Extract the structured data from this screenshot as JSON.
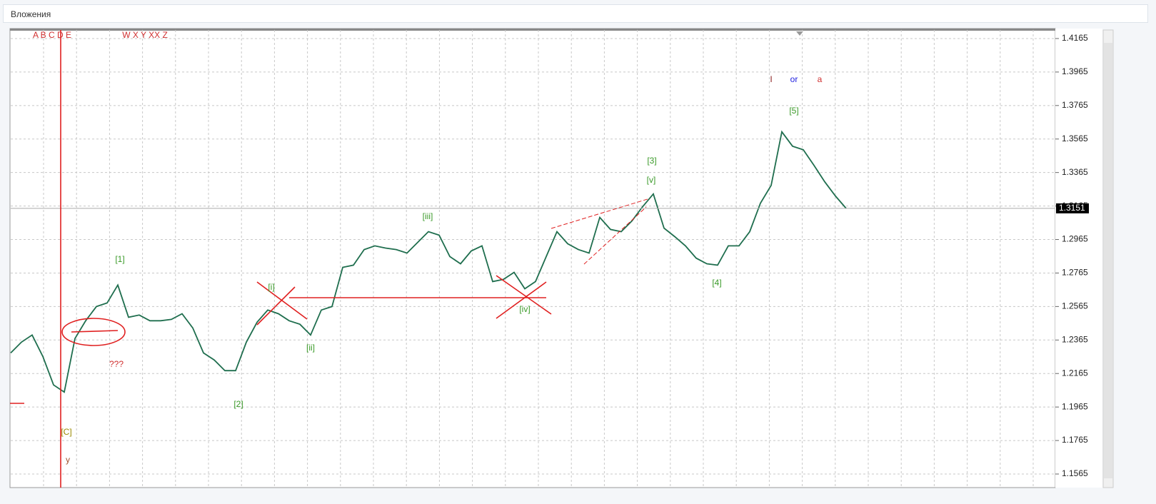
{
  "window_title": "Вложения",
  "chart_data": {
    "type": "line",
    "color": "#1f6e4e",
    "values": [
      1.2288,
      1.2352,
      1.2395,
      1.2267,
      1.2097,
      1.2054,
      1.2374,
      1.248,
      1.2565,
      1.2586,
      1.2693,
      1.2501,
      1.2514,
      1.248,
      1.248,
      1.2488,
      1.2522,
      1.2437,
      1.2288,
      1.2246,
      1.2182,
      1.2182,
      1.2352,
      1.2471,
      1.2544,
      1.2522,
      1.248,
      1.2459,
      1.2395,
      1.2544,
      1.2565,
      1.2799,
      1.2812,
      1.2905,
      1.2927,
      1.2914,
      1.2905,
      1.2884,
      1.2948,
      1.3012,
      1.2991,
      1.2863,
      1.282,
      1.2897,
      1.2927,
      1.2714,
      1.2727,
      1.2769,
      1.2671,
      1.2714,
      1.2863,
      1.3012,
      1.294,
      1.2905,
      1.2884,
      1.3097,
      1.3025,
      1.3012,
      1.3076,
      1.3161,
      1.3237,
      1.3033,
      1.2982,
      1.2927,
      1.2854,
      1.282,
      1.2812,
      1.2927,
      1.2927,
      1.3012,
      1.3182,
      1.3288,
      1.3608,
      1.3522,
      1.3501,
      1.3408,
      1.331,
      1.3225,
      1.3151
    ],
    "ylim": [
      1.1484,
      1.4216
    ],
    "yticks": [
      1.4165,
      1.3965,
      1.3765,
      1.3565,
      1.3365,
      1.3165,
      1.2965,
      1.2765,
      1.2565,
      1.2365,
      1.2165,
      1.1965,
      1.1765,
      1.1565
    ],
    "grid": true,
    "current_price": 1.3151,
    "annotations": [
      {
        "text": "A B C D E",
        "color": "#d03030"
      },
      {
        "text": "W X Y XX Z",
        "color": "#d03030"
      },
      {
        "text": "[1]",
        "color": "#3a9a28"
      },
      {
        "text": "???",
        "color": "#d03030"
      },
      {
        "text": "[C]",
        "color": "#9a8a00"
      },
      {
        "text": "y",
        "color": "#a0522d"
      },
      {
        "text": "[2]",
        "color": "#3a9a28"
      },
      {
        "text": "[i]",
        "color": "#3a9a28"
      },
      {
        "text": "[ii]",
        "color": "#3a9a28"
      },
      {
        "text": "[iii]",
        "color": "#3a9a28"
      },
      {
        "text": "[iv]",
        "color": "#3a9a28"
      },
      {
        "text": "[3]",
        "color": "#3a9a28"
      },
      {
        "text": "[v]",
        "color": "#3a9a28"
      },
      {
        "text": "[4]",
        "color": "#3a9a28"
      },
      {
        "text": "[5]",
        "color": "#3a9a28"
      },
      {
        "text": "I",
        "color": "#8b2020"
      },
      {
        "text": "or",
        "color": "#2020e0"
      },
      {
        "text": "a",
        "color": "#d03030"
      }
    ]
  }
}
